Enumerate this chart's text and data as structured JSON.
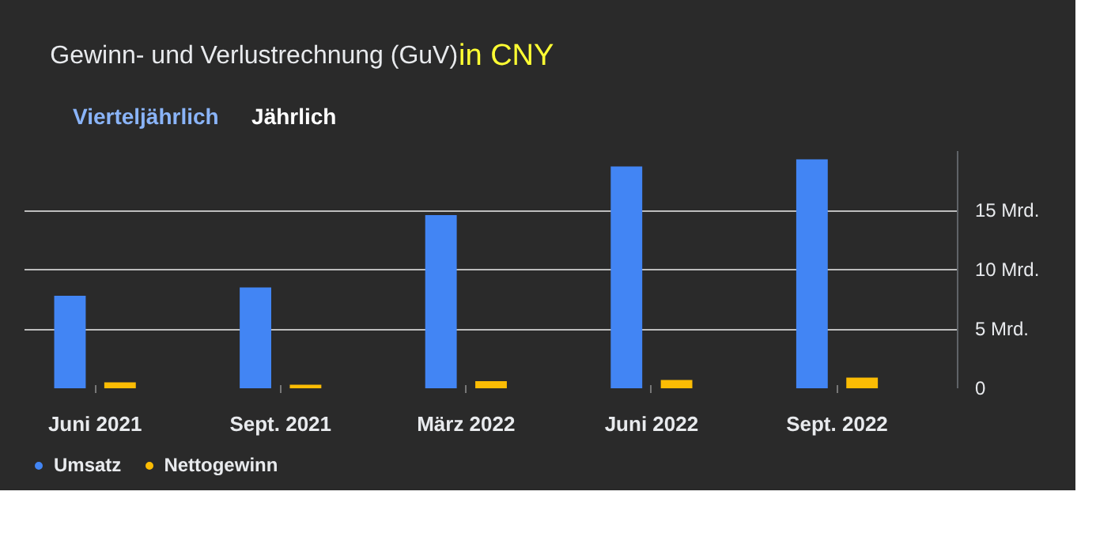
{
  "chart_data": {
    "type": "bar",
    "title": "Gewinn- und Verlustrechnung (GuV)",
    "annotations": [
      "in CNY",
      "Vierteljährlich",
      "Jährlich"
    ],
    "categories": [
      "Juni 2021",
      "Sept. 2021",
      "März 2022",
      "Juni 2022",
      "Sept. 2022"
    ],
    "series": [
      {
        "name": "Umsatz",
        "color": "#4285f4",
        "values": [
          7.8,
          8.5,
          14.6,
          18.7,
          19.3
        ]
      },
      {
        "name": "Nettogewinn",
        "color": "#fbbc04",
        "values": [
          0.5,
          0.3,
          0.6,
          0.7,
          0.9
        ]
      }
    ],
    "ylim": [
      0,
      20
    ],
    "yticks": [
      {
        "value": 0,
        "label": "0"
      },
      {
        "value": 5,
        "label": "5 Mrd."
      },
      {
        "value": 10,
        "label": "10 Mrd."
      },
      {
        "value": 15,
        "label": "15 Mrd."
      }
    ],
    "grid": "y",
    "legend": "bottom left"
  }
}
